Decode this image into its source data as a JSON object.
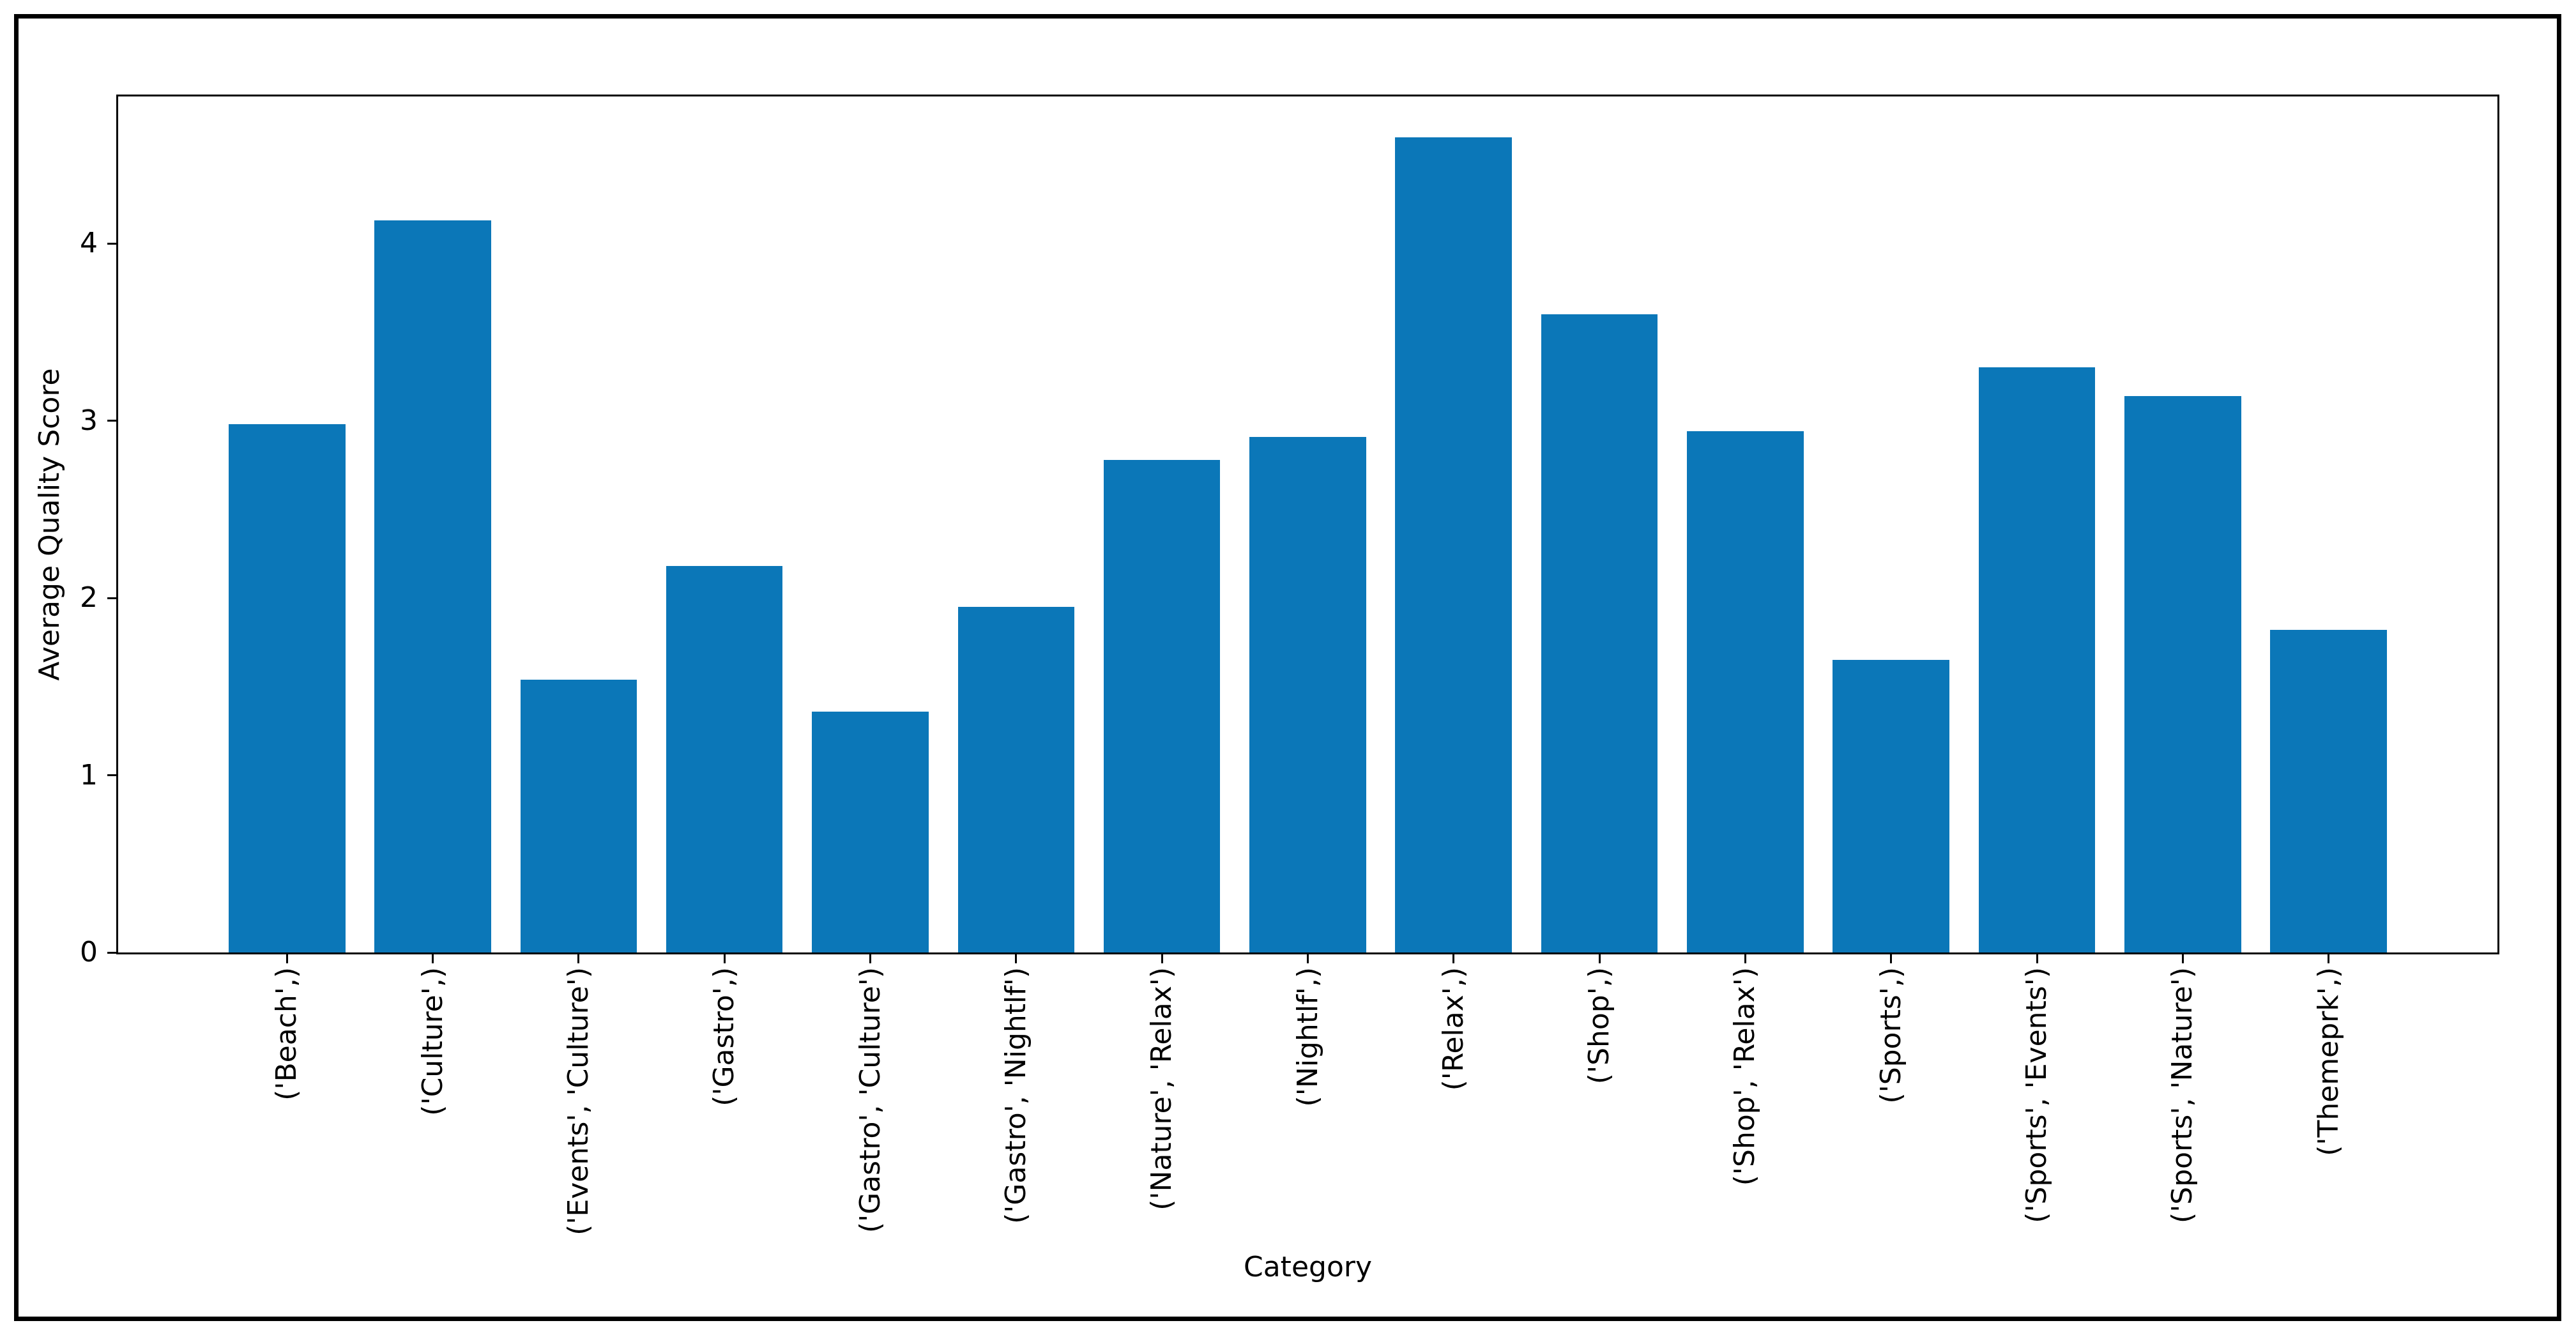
{
  "figure": {
    "background": "#ffffff",
    "frame_color": "#000000",
    "axis_color": "#000000",
    "text_color": "#000000"
  },
  "chart_data": {
    "type": "bar",
    "title": "",
    "xlabel": "Category",
    "ylabel": "Average Quality Score",
    "categories": [
      "('Beach',)",
      "('Culture',)",
      "('Events', 'Culture')",
      "('Gastro',)",
      "('Gastro', 'Culture')",
      "('Gastro', 'Nightlf')",
      "('Nature', 'Relax')",
      "('Nightlf',)",
      "('Relax',)",
      "('Shop',)",
      "('Shop', 'Relax')",
      "('Sports',)",
      "('Sports', 'Events')",
      "('Sports', 'Nature')",
      "('Themeprk',)"
    ],
    "values": [
      2.98,
      4.13,
      1.54,
      2.18,
      1.36,
      1.95,
      2.78,
      2.91,
      4.6,
      3.6,
      2.94,
      1.65,
      3.3,
      3.14,
      1.82
    ],
    "yticks": [
      0,
      1,
      2,
      3,
      4
    ],
    "ylim": [
      0,
      4.83
    ],
    "bar_color": "#0b77b8",
    "bar_width_fraction": 0.8,
    "grid": false,
    "legend_position": "none"
  }
}
